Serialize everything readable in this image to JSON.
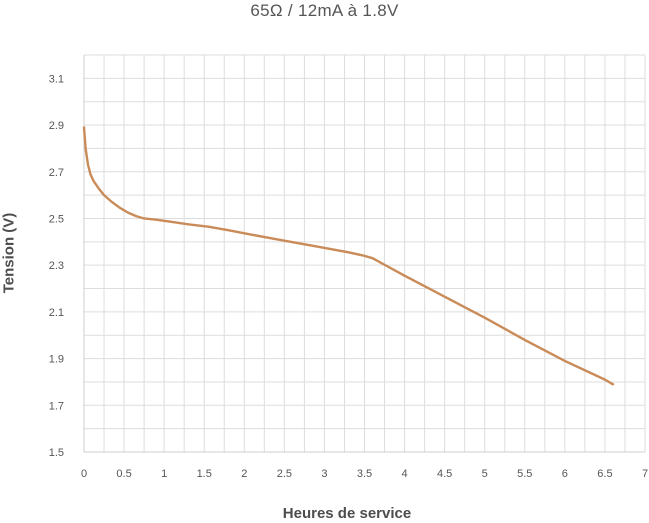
{
  "chart_data": {
    "type": "line",
    "title": "65Ω / 12mA à 1.8V",
    "xlabel": "Heures de service",
    "ylabel": "Tension (V)",
    "xlim": [
      0,
      7
    ],
    "ylim": [
      1.5,
      3.2
    ],
    "x_ticks": [
      "0",
      "0.5",
      "1",
      "1.5",
      "2",
      "2.5",
      "3",
      "3.5",
      "4",
      "4.5",
      "5",
      "5.5",
      "6",
      "6.5",
      "7"
    ],
    "y_ticks": [
      "1.5",
      "1.7",
      "1.9",
      "2.1",
      "2.3",
      "2.5",
      "2.7",
      "2.9",
      "3.1"
    ],
    "grid": true,
    "legend": "none",
    "line_color": "#c98b58",
    "grid_color": "#dddddd",
    "series": [
      {
        "x": [
          0,
          0.02,
          0.05,
          0.08,
          0.12,
          0.18,
          0.25,
          0.35,
          0.45,
          0.55,
          0.65,
          0.75,
          0.9,
          1.1,
          1.3,
          1.55,
          1.8,
          2.1,
          2.5,
          2.9,
          3.3,
          3.5,
          3.6,
          4.0,
          4.5,
          5.0,
          5.5,
          6.0,
          6.5,
          6.6
        ],
        "y": [
          2.89,
          2.8,
          2.73,
          2.69,
          2.66,
          2.63,
          2.6,
          2.57,
          2.545,
          2.525,
          2.51,
          2.5,
          2.495,
          2.485,
          2.475,
          2.465,
          2.45,
          2.43,
          2.405,
          2.38,
          2.355,
          2.34,
          2.33,
          2.255,
          2.165,
          2.075,
          1.98,
          1.89,
          1.81,
          1.79
        ]
      }
    ]
  }
}
